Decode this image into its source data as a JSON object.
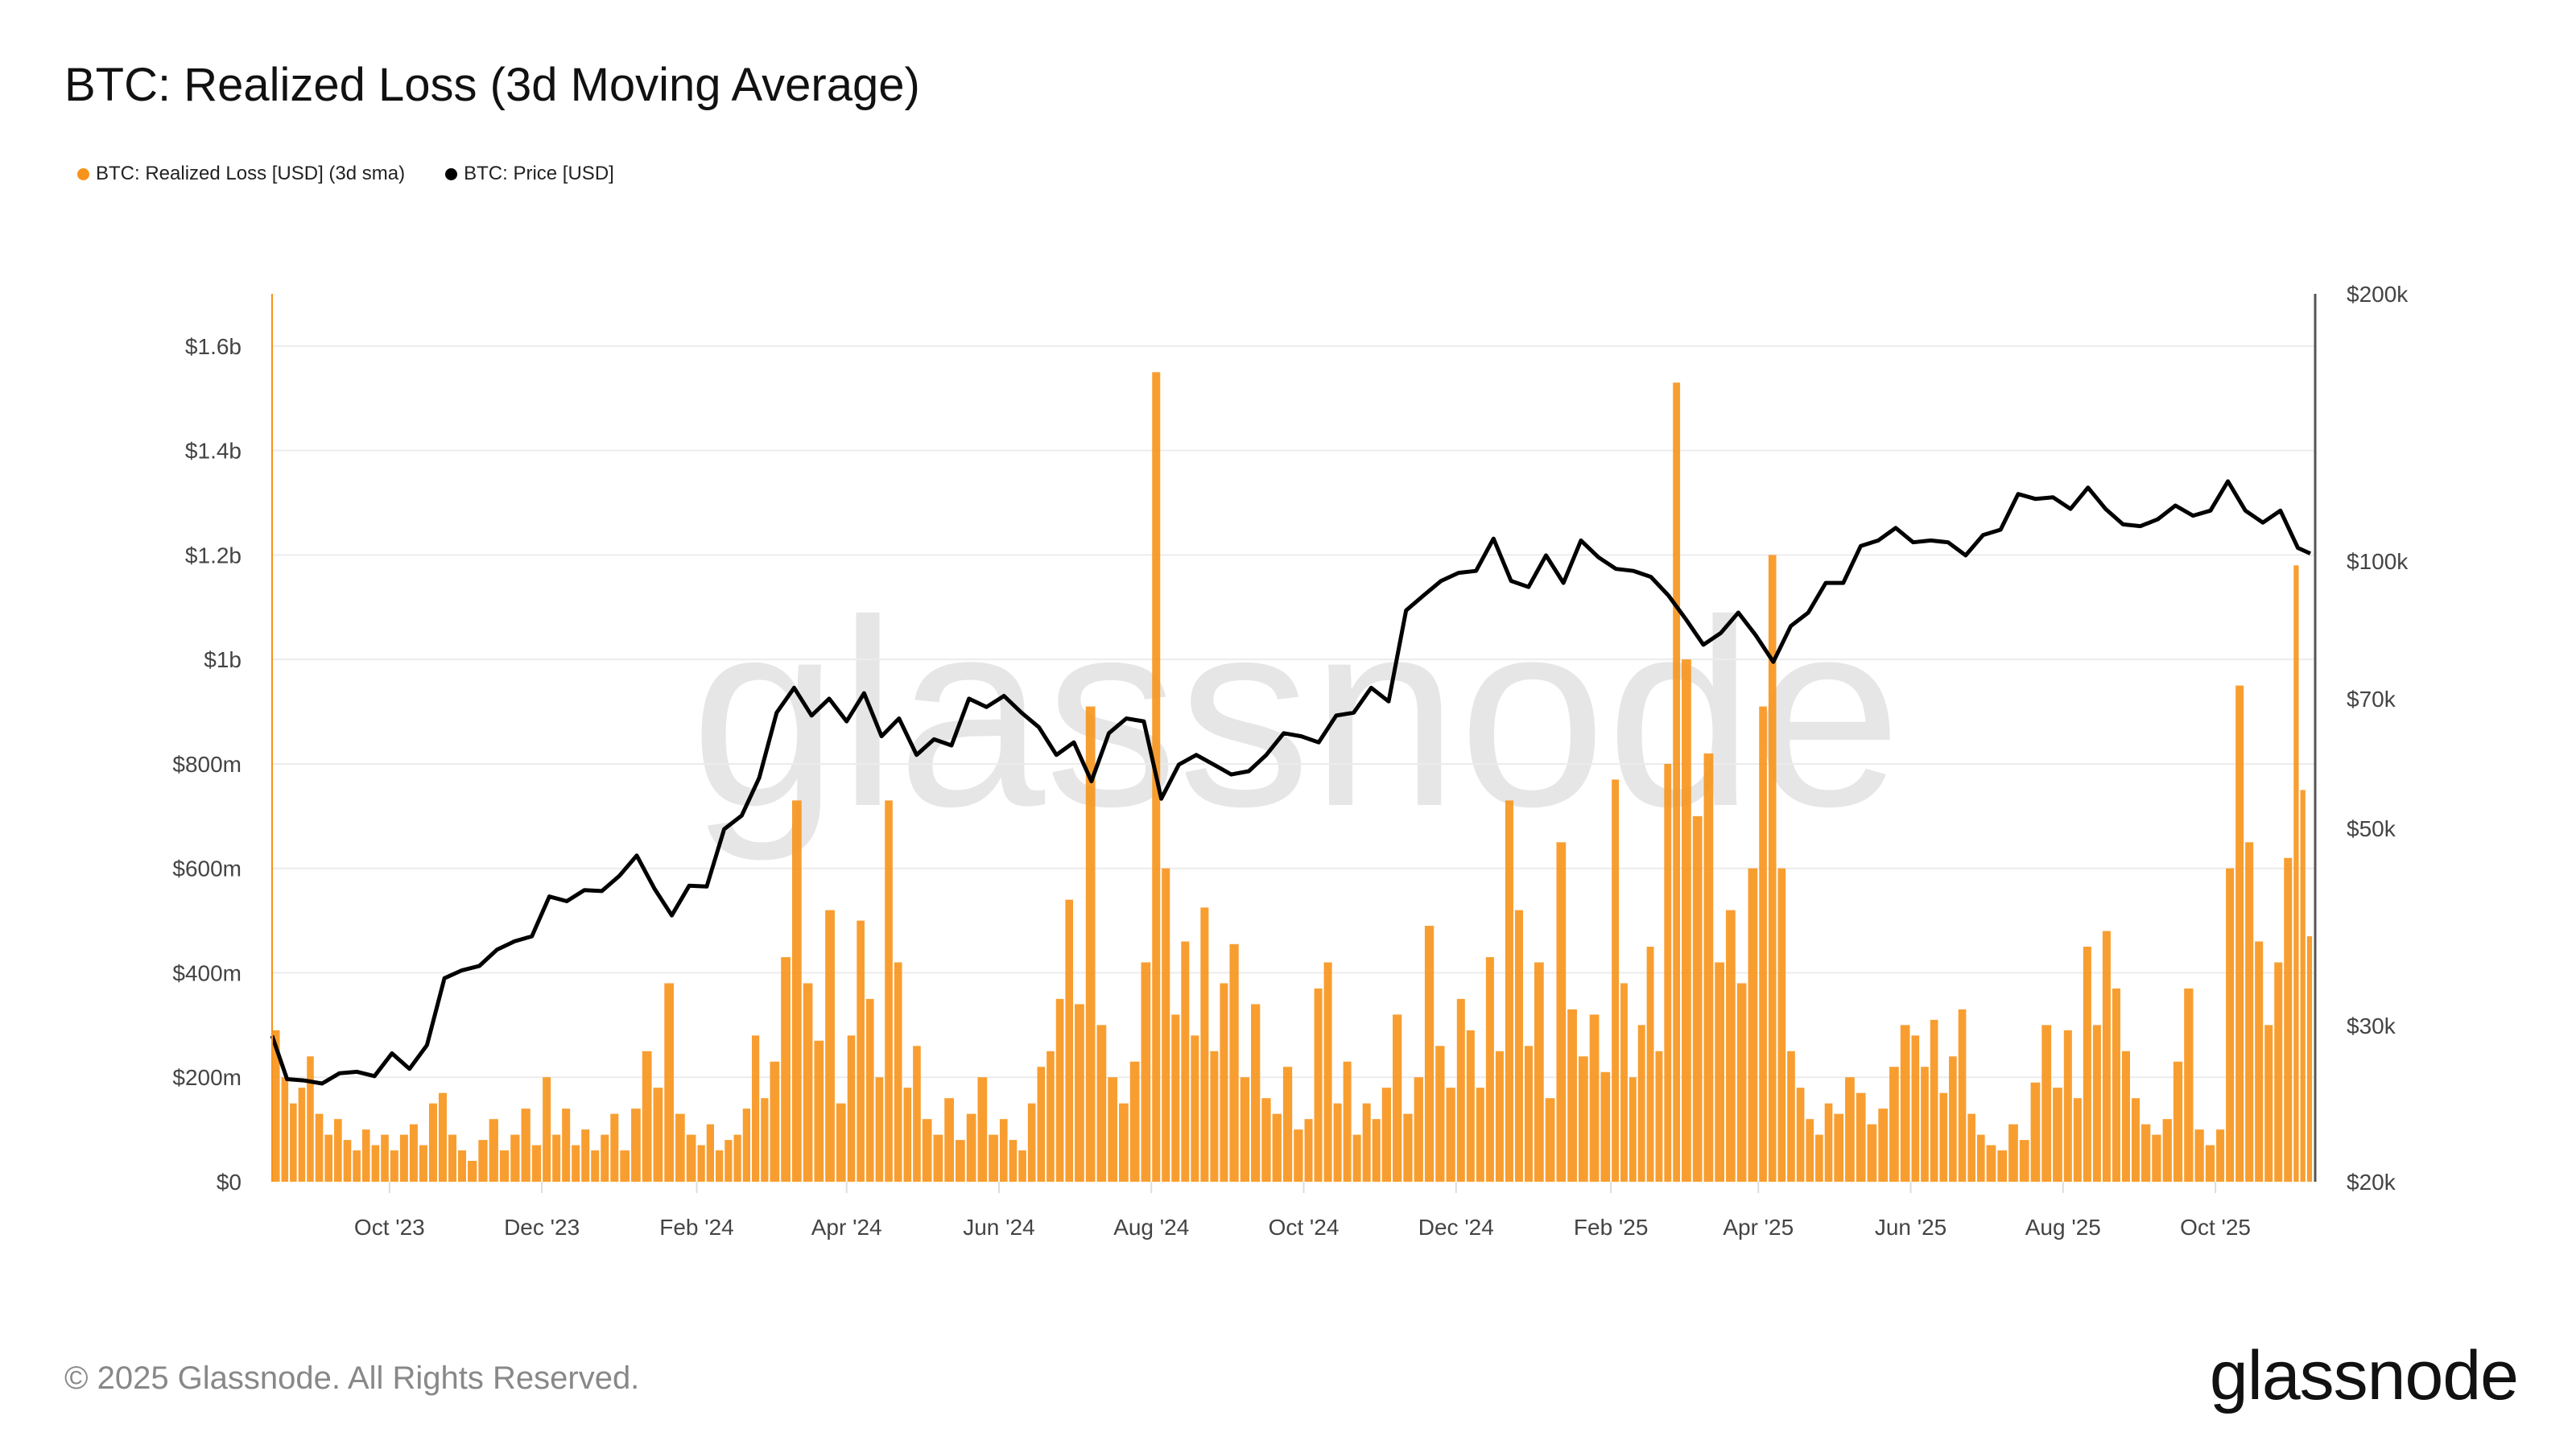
{
  "title": "BTC: Realized Loss (3d Moving Average)",
  "footer": "© 2025 Glassnode. All Rights Reserved.",
  "logo": "glassnode",
  "watermark": "glassnode",
  "chart_data": {
    "type": "bar+line",
    "title": "BTC: Realized Loss (3d Moving Average)",
    "legend_placement": "top-left",
    "grid": true,
    "colors": {
      "loss": "#f7931a",
      "price": "#000000"
    },
    "x_ticks": [
      "Oct '23",
      "Dec '23",
      "Feb '24",
      "Apr '24",
      "Jun '24",
      "Aug '24",
      "Oct '24",
      "Dec '24",
      "Feb '25",
      "Apr '25",
      "Jun '25",
      "Aug '25",
      "Oct '25"
    ],
    "x_tick_dates": [
      "2023-10-01",
      "2023-12-01",
      "2024-02-01",
      "2024-04-01",
      "2024-06-01",
      "2024-08-01",
      "2024-10-01",
      "2024-12-01",
      "2025-02-01",
      "2025-04-01",
      "2025-06-01",
      "2025-08-01",
      "2025-10-01"
    ],
    "x_range": [
      "2023-08-15",
      "2025-11-08"
    ],
    "y_left": {
      "scale": "linear",
      "unit": "USD",
      "range": [
        0,
        1700000000
      ],
      "ticks": [
        0,
        200000000,
        400000000,
        600000000,
        800000000,
        1000000000,
        1200000000,
        1400000000,
        1600000000
      ],
      "tick_labels": [
        "$0",
        "$200m",
        "$400m",
        "$600m",
        "$800m",
        "$1b",
        "$1.2b",
        "$1.4b",
        "$1.6b"
      ]
    },
    "y_right": {
      "scale": "log",
      "unit": "USD",
      "range": [
        20000,
        200000
      ],
      "ticks": [
        20000,
        30000,
        50000,
        70000,
        100000,
        200000
      ],
      "tick_labels": [
        "$20k",
        "$30k",
        "$50k",
        "$70k",
        "$100k",
        "$200k"
      ]
    },
    "series": [
      {
        "name": "BTC: Realized Loss [USD] (3d sma)",
        "axis": "left",
        "type": "bar",
        "unit": "USD millions",
        "values_by_month": {
          "2023-08": [
            290,
            200,
            150,
            180,
            240
          ],
          "2023-09": [
            130,
            90,
            120,
            80,
            60,
            100,
            70,
            90
          ],
          "2023-10": [
            60,
            90,
            110,
            70,
            150,
            170,
            90,
            60
          ],
          "2023-11": [
            40,
            80,
            120,
            60,
            90,
            140,
            70
          ],
          "2023-12": [
            200,
            90,
            140,
            70,
            100,
            60,
            90,
            130
          ],
          "2024-01": [
            60,
            140,
            250,
            180,
            380,
            130,
            90
          ],
          "2024-02": [
            70,
            110,
            60,
            80,
            90,
            140,
            280,
            160
          ],
          "2024-03": [
            230,
            430,
            730,
            380,
            270,
            520,
            150
          ],
          "2024-04": [
            280,
            500,
            350,
            200,
            730,
            420,
            180,
            260
          ],
          "2024-05": [
            120,
            90,
            160,
            80,
            130,
            200,
            90
          ],
          "2024-06": [
            120,
            80,
            60,
            150,
            220,
            250,
            350,
            540
          ],
          "2024-07": [
            340,
            910,
            300,
            200,
            150,
            230,
            420
          ],
          "2024-08": [
            1550,
            600,
            320,
            460,
            280,
            525,
            250,
            380
          ],
          "2024-09": [
            455,
            200,
            340,
            160,
            130,
            220,
            100
          ],
          "2024-10": [
            120,
            370,
            420,
            150,
            230,
            90,
            150,
            120
          ],
          "2024-11": [
            180,
            320,
            130,
            200,
            490,
            260,
            180
          ],
          "2024-12": [
            350,
            290,
            180,
            430,
            250,
            730,
            520,
            260
          ],
          "2025-01": [
            420,
            160,
            650,
            330,
            240,
            320,
            210
          ],
          "2025-02": [
            770,
            380,
            200,
            300,
            450,
            250,
            800,
            1530
          ],
          "2025-03": [
            1000,
            700,
            820,
            420,
            520,
            380,
            600
          ],
          "2025-04": [
            910,
            1200,
            600,
            250,
            180,
            120,
            90,
            150
          ],
          "2025-05": [
            130,
            200,
            170,
            110,
            140,
            220,
            300
          ],
          "2025-06": [
            280,
            220,
            310,
            170,
            240,
            330,
            130,
            90
          ],
          "2025-07": [
            70,
            60,
            110,
            80,
            190,
            300,
            180
          ],
          "2025-08": [
            290,
            160,
            450,
            300,
            480,
            370,
            250,
            160
          ],
          "2025-09": [
            110,
            90,
            120,
            230,
            370,
            100,
            70
          ],
          "2025-10": [
            100,
            600,
            950,
            650,
            460,
            300,
            420,
            620
          ],
          "2025-11": [
            1180,
            750,
            470
          ]
        }
      },
      {
        "name": "BTC: Price [USD]",
        "axis": "right",
        "type": "line",
        "unit": "USD thousands",
        "weekly_start": "2023-08-14",
        "values": [
          29.2,
          26.1,
          26.0,
          25.8,
          26.5,
          26.6,
          26.3,
          27.9,
          26.8,
          28.5,
          33.9,
          34.6,
          35.0,
          36.5,
          37.3,
          37.8,
          41.9,
          41.4,
          42.6,
          42.5,
          44.2,
          46.6,
          42.8,
          39.9,
          43.1,
          43.0,
          49.9,
          51.7,
          57.0,
          67.5,
          72.0,
          67.0,
          70.0,
          66.0,
          71.0,
          63.5,
          66.5,
          60.5,
          63.0,
          62.0,
          70.0,
          68.5,
          70.5,
          67.5,
          65.0,
          60.5,
          62.5,
          56.5,
          64.0,
          66.5,
          66.0,
          54.0,
          59.0,
          60.5,
          59.0,
          57.5,
          58.0,
          60.5,
          64.0,
          63.5,
          62.5,
          67.0,
          67.5,
          72.0,
          69.5,
          88.0,
          91.5,
          95.0,
          97.0,
          97.5,
          106.0,
          95.0,
          93.5,
          101.5,
          94.5,
          105.5,
          101.0,
          98.0,
          97.5,
          96.0,
          91.5,
          86.0,
          80.5,
          83.0,
          87.5,
          82.5,
          77.0,
          84.5,
          87.5,
          94.5,
          94.5,
          104.0,
          105.5,
          109.0,
          105.0,
          105.5,
          105.0,
          101.5,
          107.0,
          108.5,
          119.0,
          117.5,
          118.0,
          114.5,
          121.0,
          114.5,
          110.0,
          109.5,
          111.5,
          115.5,
          112.5,
          114.0,
          123.0,
          114.0,
          110.5,
          114.0,
          103.5,
          102.0
        ]
      }
    ]
  }
}
